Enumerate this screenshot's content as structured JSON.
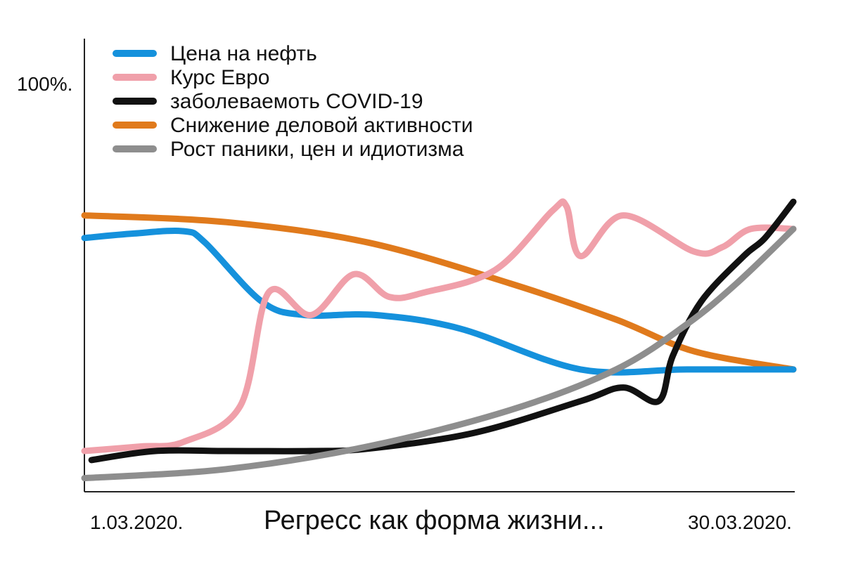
{
  "chart_data": {
    "type": "line",
    "title": "Регресс как форма жизни...",
    "y_top_label": "100%.",
    "x_start_label": "1.03.2020.",
    "x_end_label": "30.03.2020.",
    "xlim": [
      0,
      100
    ],
    "ylim": [
      0,
      100
    ],
    "grid": false,
    "legend_position": "top-left",
    "series": [
      {
        "name": "Цена на нефть",
        "color": "#1591dc",
        "points": [
          [
            0,
            56
          ],
          [
            7,
            57
          ],
          [
            14,
            57.5
          ],
          [
            17,
            55
          ],
          [
            25,
            42
          ],
          [
            31,
            39
          ],
          [
            41,
            39
          ],
          [
            53,
            36
          ],
          [
            70,
            27
          ],
          [
            85,
            27
          ],
          [
            100,
            27
          ]
        ]
      },
      {
        "name": "Курс Евро",
        "color": "#f0a0aa",
        "points": [
          [
            0,
            9
          ],
          [
            8,
            10
          ],
          [
            14,
            11
          ],
          [
            22,
            19
          ],
          [
            26,
            44
          ],
          [
            32,
            39
          ],
          [
            38,
            48
          ],
          [
            43,
            43
          ],
          [
            48,
            44
          ],
          [
            58,
            49
          ],
          [
            66,
            62
          ],
          [
            68,
            63
          ],
          [
            70,
            52
          ],
          [
            76,
            61
          ],
          [
            86,
            53
          ],
          [
            90,
            54
          ],
          [
            94,
            58
          ],
          [
            100,
            58
          ]
        ]
      },
      {
        "name": "заболеваемоть COVID-19",
        "color": "#111111",
        "points": [
          [
            1,
            7
          ],
          [
            10,
            9
          ],
          [
            20,
            9
          ],
          [
            32,
            9
          ],
          [
            40,
            9.5
          ],
          [
            55,
            13
          ],
          [
            70,
            20
          ],
          [
            76,
            23
          ],
          [
            81,
            20
          ],
          [
            83,
            30
          ],
          [
            87,
            42
          ],
          [
            93,
            52
          ],
          [
            96,
            56
          ],
          [
            100,
            64
          ]
        ]
      },
      {
        "name": "Снижение деловой активности",
        "color": "#e07a1c",
        "points": [
          [
            0,
            61
          ],
          [
            20,
            59.5
          ],
          [
            40,
            55
          ],
          [
            60,
            46
          ],
          [
            75,
            38
          ],
          [
            86,
            31
          ],
          [
            100,
            27
          ]
        ]
      },
      {
        "name": "Рост паники, цен и идиотизма",
        "color": "#8e8e8e",
        "points": [
          [
            0,
            3
          ],
          [
            20,
            5
          ],
          [
            40,
            10
          ],
          [
            60,
            18
          ],
          [
            75,
            27
          ],
          [
            85,
            37
          ],
          [
            92,
            46
          ],
          [
            100,
            58
          ]
        ]
      }
    ]
  }
}
